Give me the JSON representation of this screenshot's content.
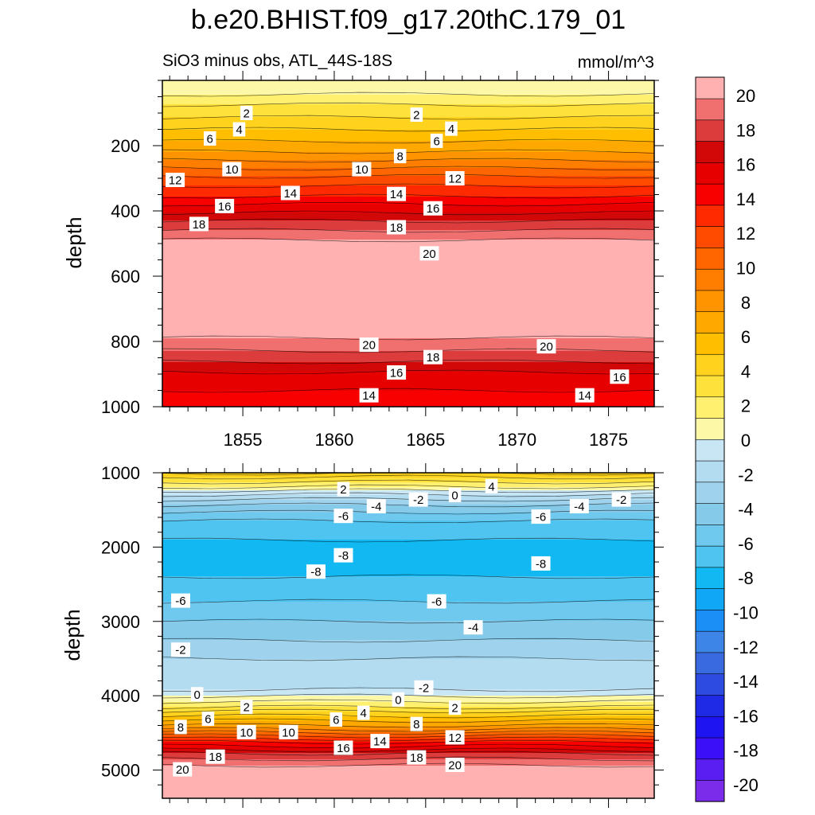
{
  "chart_data": {
    "type": "contour",
    "title": "b.e20.BHIST.f09_g17.20thC.179_01",
    "subtitle_left": "SiO3 minus obs, ATL_44S-18S",
    "subtitle_right": "mmol/m^3",
    "x_range": [
      1850.6,
      1877.5
    ],
    "x_ticks": [
      1855,
      1860,
      1865,
      1870,
      1875
    ],
    "x_tick_labels": [
      "1855",
      "1860",
      "1865",
      "1870",
      "1875"
    ],
    "upper_panel": {
      "ylabel": "depth",
      "y_range": [
        0,
        1000
      ],
      "y_ticks": [
        200,
        400,
        600,
        800,
        1000
      ],
      "y_tick_labels": [
        "200",
        "400",
        "600",
        "800",
        "1000"
      ],
      "profile": [
        [
          0,
          0
        ],
        [
          20,
          0.3
        ],
        [
          60,
          2
        ],
        [
          120,
          4
        ],
        [
          180,
          6
        ],
        [
          230,
          8
        ],
        [
          270,
          10
        ],
        [
          310,
          12
        ],
        [
          360,
          14
        ],
        [
          400,
          16
        ],
        [
          440,
          18
        ],
        [
          490,
          20
        ],
        [
          790,
          20
        ],
        [
          850,
          18
        ],
        [
          900,
          16
        ],
        [
          1000,
          14
        ]
      ],
      "contour_labels": [
        {
          "t": 1851.3,
          "d": 305,
          "v": "12"
        },
        {
          "t": 1852.6,
          "d": 440,
          "v": "18"
        },
        {
          "t": 1853.2,
          "d": 178,
          "v": "6"
        },
        {
          "t": 1854.0,
          "d": 385,
          "v": "16"
        },
        {
          "t": 1854.4,
          "d": 272,
          "v": "10"
        },
        {
          "t": 1854.8,
          "d": 150,
          "v": "4"
        },
        {
          "t": 1855.2,
          "d": 100,
          "v": "2"
        },
        {
          "t": 1857.6,
          "d": 345,
          "v": "14"
        },
        {
          "t": 1861.5,
          "d": 272,
          "v": "10"
        },
        {
          "t": 1861.9,
          "d": 810,
          "v": "20"
        },
        {
          "t": 1861.9,
          "d": 965,
          "v": "14"
        },
        {
          "t": 1863.4,
          "d": 348,
          "v": "14"
        },
        {
          "t": 1863.4,
          "d": 895,
          "v": "16"
        },
        {
          "t": 1863.4,
          "d": 450,
          "v": "18"
        },
        {
          "t": 1863.6,
          "d": 232,
          "v": "8"
        },
        {
          "t": 1864.5,
          "d": 105,
          "v": "2"
        },
        {
          "t": 1865.2,
          "d": 530,
          "v": "20"
        },
        {
          "t": 1865.4,
          "d": 848,
          "v": "18"
        },
        {
          "t": 1865.4,
          "d": 392,
          "v": "16"
        },
        {
          "t": 1865.6,
          "d": 185,
          "v": "6"
        },
        {
          "t": 1866.4,
          "d": 148,
          "v": "4"
        },
        {
          "t": 1866.6,
          "d": 300,
          "v": "12"
        },
        {
          "t": 1871.6,
          "d": 815,
          "v": "20"
        },
        {
          "t": 1873.7,
          "d": 965,
          "v": "14"
        },
        {
          "t": 1875.6,
          "d": 908,
          "v": "16"
        }
      ]
    },
    "lower_panel": {
      "ylabel": "depth",
      "y_range": [
        1000,
        5380
      ],
      "y_ticks": [
        1000,
        2000,
        3000,
        4000,
        5000
      ],
      "y_tick_labels": [
        "1000",
        "2000",
        "3000",
        "4000",
        "5000"
      ],
      "profile": [
        [
          1000,
          5
        ],
        [
          1100,
          3
        ],
        [
          1200,
          1
        ],
        [
          1300,
          -1.5
        ],
        [
          1450,
          -4
        ],
        [
          1600,
          -6
        ],
        [
          1900,
          -7.5
        ],
        [
          2200,
          -8.5
        ],
        [
          2500,
          -7
        ],
        [
          2800,
          -6
        ],
        [
          3100,
          -4.5
        ],
        [
          3500,
          -2.5
        ],
        [
          3900,
          -1.5
        ],
        [
          4000,
          0
        ],
        [
          4100,
          1.5
        ],
        [
          4200,
          3.5
        ],
        [
          4300,
          5.5
        ],
        [
          4400,
          7.5
        ],
        [
          4500,
          10
        ],
        [
          4600,
          13
        ],
        [
          4700,
          15.5
        ],
        [
          4800,
          18
        ],
        [
          4900,
          19.5
        ],
        [
          5000,
          21
        ],
        [
          5380,
          21
        ]
      ],
      "contour_labels": [
        {
          "t": 1851.6,
          "d": 2720,
          "v": "-6"
        },
        {
          "t": 1851.6,
          "d": 3380,
          "v": "-2"
        },
        {
          "t": 1851.6,
          "d": 4420,
          "v": "8"
        },
        {
          "t": 1851.7,
          "d": 4990,
          "v": "20"
        },
        {
          "t": 1852.5,
          "d": 3980,
          "v": "0"
        },
        {
          "t": 1853.1,
          "d": 4310,
          "v": "6"
        },
        {
          "t": 1853.5,
          "d": 4820,
          "v": "18"
        },
        {
          "t": 1855.2,
          "d": 4150,
          "v": "2"
        },
        {
          "t": 1855.2,
          "d": 4490,
          "v": "10"
        },
        {
          "t": 1857.5,
          "d": 4490,
          "v": "10"
        },
        {
          "t": 1859.0,
          "d": 2330,
          "v": "-8"
        },
        {
          "t": 1860.1,
          "d": 4320,
          "v": "6"
        },
        {
          "t": 1860.5,
          "d": 1220,
          "v": "2"
        },
        {
          "t": 1860.5,
          "d": 1580,
          "v": "-6"
        },
        {
          "t": 1860.5,
          "d": 2110,
          "v": "-8"
        },
        {
          "t": 1860.5,
          "d": 4700,
          "v": "16"
        },
        {
          "t": 1861.6,
          "d": 4230,
          "v": "4"
        },
        {
          "t": 1862.3,
          "d": 1450,
          "v": "-4"
        },
        {
          "t": 1862.5,
          "d": 4610,
          "v": "14"
        },
        {
          "t": 1863.5,
          "d": 4050,
          "v": "0"
        },
        {
          "t": 1864.5,
          "d": 4380,
          "v": "8"
        },
        {
          "t": 1864.5,
          "d": 4830,
          "v": "18"
        },
        {
          "t": 1864.6,
          "d": 1360,
          "v": "-2"
        },
        {
          "t": 1864.9,
          "d": 3890,
          "v": "-2"
        },
        {
          "t": 1865.6,
          "d": 2730,
          "v": "-6"
        },
        {
          "t": 1866.6,
          "d": 1300,
          "v": "0"
        },
        {
          "t": 1866.6,
          "d": 4560,
          "v": "12"
        },
        {
          "t": 1866.6,
          "d": 4160,
          "v": "2"
        },
        {
          "t": 1866.6,
          "d": 4930,
          "v": "20"
        },
        {
          "t": 1867.6,
          "d": 3080,
          "v": "-4"
        },
        {
          "t": 1868.6,
          "d": 1180,
          "v": "4"
        },
        {
          "t": 1871.3,
          "d": 1590,
          "v": "-6"
        },
        {
          "t": 1871.3,
          "d": 2220,
          "v": "-8"
        },
        {
          "t": 1873.4,
          "d": 1450,
          "v": "-4"
        },
        {
          "t": 1875.7,
          "d": 1360,
          "v": "-2"
        }
      ]
    },
    "colorbar": {
      "levels": [
        -20,
        -18,
        -16,
        -14,
        -12,
        -10,
        -8,
        -6,
        -4,
        -2,
        0,
        2,
        4,
        6,
        8,
        10,
        12,
        14,
        16,
        18,
        20
      ],
      "labels": [
        "20",
        "18",
        "16",
        "14",
        "12",
        "10",
        "8",
        "6",
        "4",
        "2",
        "0",
        "-2",
        "-4",
        "-6",
        "-8",
        "-10",
        "-12",
        "-14",
        "-16",
        "-18",
        "-20"
      ],
      "colors": [
        "#7b2cea",
        "#5a1ef2",
        "#3b10f8",
        "#1e14f2",
        "#1f2ae6",
        "#2d4be0",
        "#3a6ae0",
        "#3e85e8",
        "#1c8ff6",
        "#10a8f6",
        "#12b8f2",
        "#4fc4f0",
        "#6fc8ee",
        "#86caea",
        "#9fd2ec",
        "#b4dcf0",
        "#c9e6f4",
        "#fdf7a8",
        "#fff070",
        "#ffe13c",
        "#ffd21e",
        "#ffbe00",
        "#ffa800",
        "#ff9400",
        "#ff7e00",
        "#ff6600",
        "#ff4b00",
        "#ff2a00",
        "#f80000",
        "#e60000",
        "#d20808",
        "#dc3c3c",
        "#f07070",
        "#ffb0b0"
      ]
    }
  }
}
